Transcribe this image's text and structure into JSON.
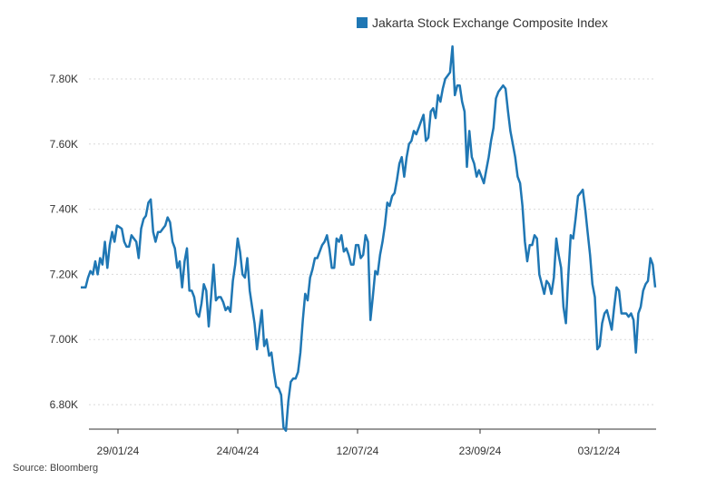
{
  "source": "Source: Bloomberg",
  "colors": {
    "line": "#1f77b4",
    "grid": "#d9d9d9",
    "axis": "#333333",
    "text": "#333333"
  },
  "chart_data": {
    "type": "line",
    "grid": true,
    "legend_position": "top-right",
    "ylim": [
      6720,
      7900
    ],
    "y_ticks": [
      6800,
      7000,
      7200,
      7400,
      7600,
      7800
    ],
    "y_tick_labels": [
      "6.80K",
      "7.00K",
      "7.20K",
      "7.40K",
      "7.60K",
      "7.80K"
    ],
    "x_tick_labels": [
      "29/01/24",
      "24/04/24",
      "12/07/24",
      "23/09/24",
      "03/12/24"
    ],
    "series": [
      {
        "name": "Jakarta Stock Exchange Composite Index",
        "values": [
          7160,
          7160,
          7160,
          7190,
          7210,
          7200,
          7240,
          7200,
          7250,
          7230,
          7300,
          7220,
          7290,
          7330,
          7300,
          7350,
          7345,
          7340,
          7300,
          7285,
          7285,
          7320,
          7310,
          7300,
          7250,
          7340,
          7370,
          7380,
          7420,
          7430,
          7330,
          7300,
          7330,
          7330,
          7340,
          7350,
          7375,
          7360,
          7300,
          7280,
          7220,
          7240,
          7160,
          7240,
          7280,
          7150,
          7150,
          7130,
          7080,
          7070,
          7110,
          7170,
          7150,
          7040,
          7130,
          7230,
          7120,
          7130,
          7130,
          7115,
          7090,
          7100,
          7085,
          7180,
          7230,
          7310,
          7270,
          7200,
          7190,
          7250,
          7150,
          7100,
          7050,
          6970,
          7030,
          7090,
          6980,
          7000,
          6950,
          6960,
          6900,
          6855,
          6850,
          6830,
          6730,
          6720,
          6810,
          6870,
          6880,
          6880,
          6900,
          6960,
          7060,
          7140,
          7120,
          7190,
          7215,
          7250,
          7250,
          7270,
          7290,
          7300,
          7320,
          7280,
          7220,
          7220,
          7310,
          7300,
          7320,
          7270,
          7280,
          7260,
          7230,
          7230,
          7290,
          7290,
          7250,
          7260,
          7320,
          7300,
          7060,
          7130,
          7210,
          7200,
          7260,
          7300,
          7350,
          7420,
          7410,
          7440,
          7450,
          7490,
          7540,
          7560,
          7500,
          7560,
          7600,
          7610,
          7640,
          7630,
          7650,
          7670,
          7690,
          7610,
          7620,
          7700,
          7710,
          7680,
          7750,
          7730,
          7770,
          7800,
          7810,
          7820,
          7900,
          7750,
          7780,
          7780,
          7730,
          7700,
          7530,
          7640,
          7560,
          7540,
          7500,
          7520,
          7500,
          7480,
          7520,
          7560,
          7610,
          7650,
          7740,
          7760,
          7770,
          7780,
          7770,
          7700,
          7640,
          7600,
          7560,
          7500,
          7480,
          7410,
          7300,
          7240,
          7290,
          7290,
          7320,
          7310,
          7200,
          7170,
          7140,
          7180,
          7170,
          7140,
          7190,
          7310,
          7260,
          7220,
          7100,
          7050,
          7200,
          7320,
          7310,
          7370,
          7440,
          7450,
          7460,
          7400,
          7330,
          7260,
          7170,
          7130,
          6970,
          6980,
          7050,
          7080,
          7090,
          7060,
          7030,
          7100,
          7160,
          7150,
          7080,
          7080,
          7080,
          7070,
          7080,
          7060,
          6960,
          7080,
          7100,
          7150,
          7170,
          7180,
          7250,
          7230,
          7160
        ]
      }
    ]
  }
}
